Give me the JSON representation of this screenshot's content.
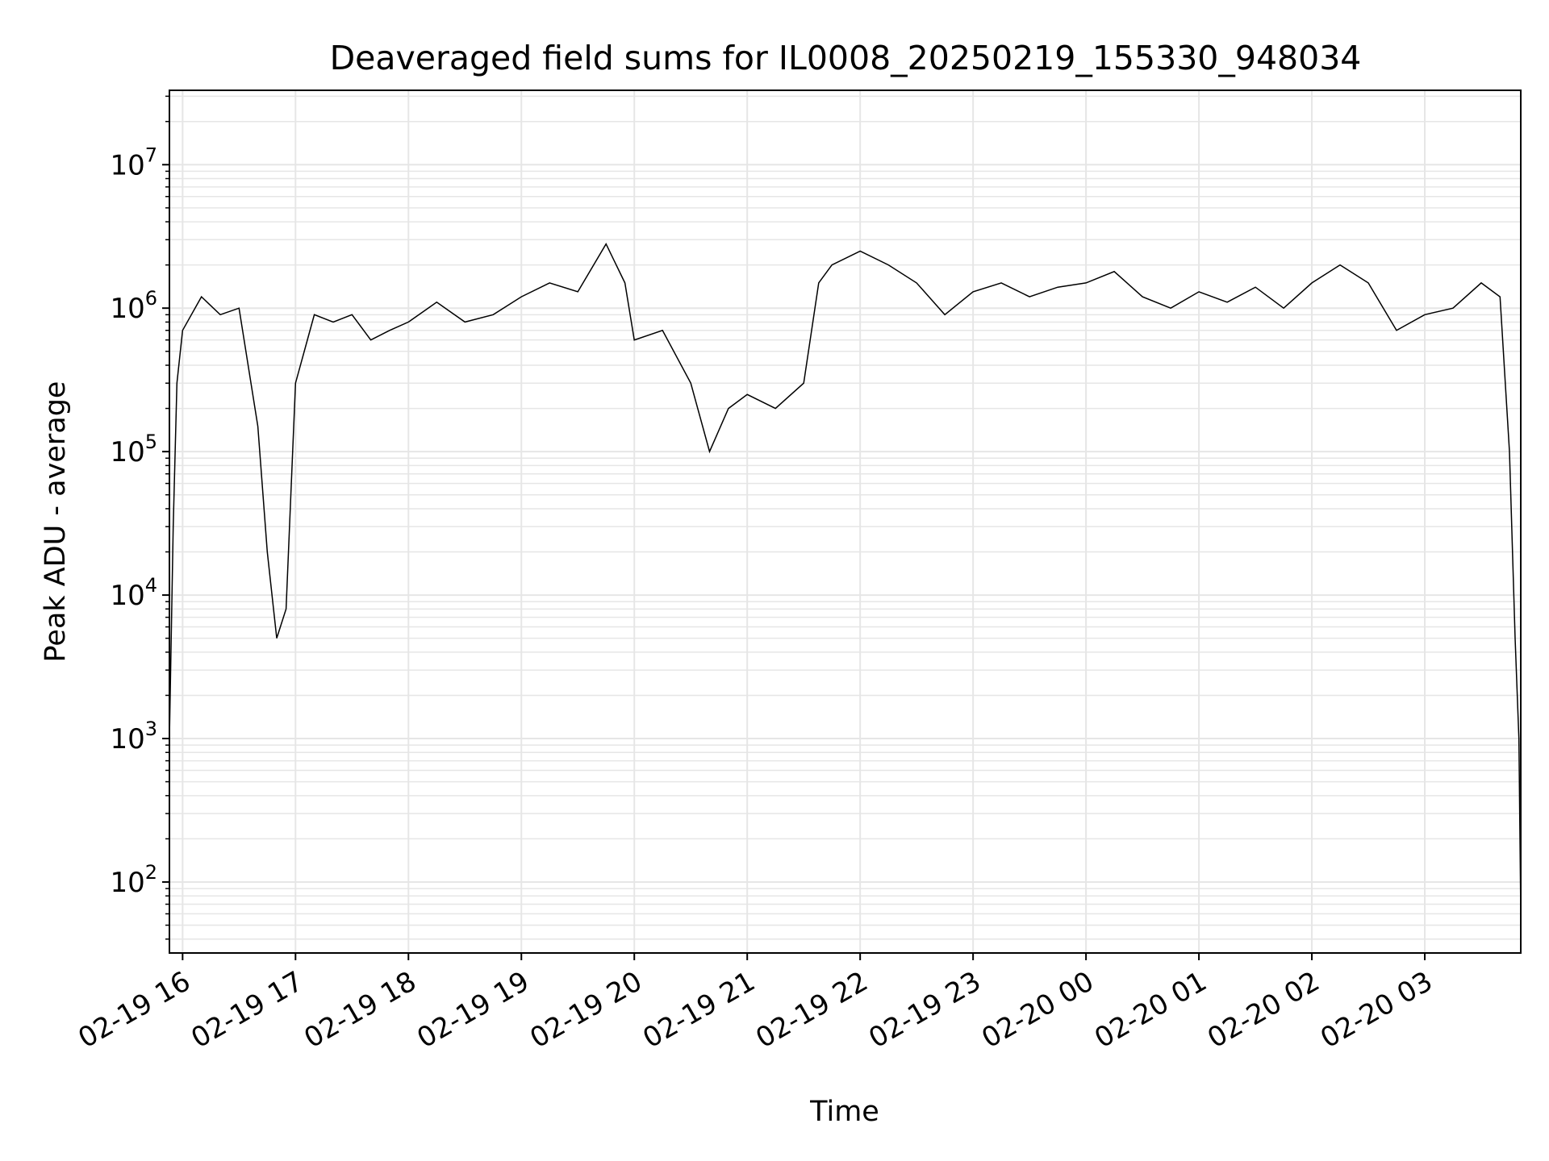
{
  "chart_data": {
    "type": "line",
    "title": "Deaveraged field sums for IL0008_20250219_155330_948034",
    "xlabel": "Time",
    "ylabel": "Peak ADU - average",
    "yscale": "log",
    "ylim": [
      32,
      33000000
    ],
    "xlim": [
      "2025-02-19 15:53",
      "2025-02-20 03:51"
    ],
    "grid": true,
    "line_color": "#000000",
    "grid_color": "#e6e6e6",
    "x_ticks": [
      {
        "value": "2025-02-19 16:00",
        "label": "02-19 16"
      },
      {
        "value": "2025-02-19 17:00",
        "label": "02-19 17"
      },
      {
        "value": "2025-02-19 18:00",
        "label": "02-19 18"
      },
      {
        "value": "2025-02-19 19:00",
        "label": "02-19 19"
      },
      {
        "value": "2025-02-19 20:00",
        "label": "02-19 20"
      },
      {
        "value": "2025-02-19 21:00",
        "label": "02-19 21"
      },
      {
        "value": "2025-02-19 22:00",
        "label": "02-19 22"
      },
      {
        "value": "2025-02-19 23:00",
        "label": "02-19 23"
      },
      {
        "value": "2025-02-20 00:00",
        "label": "02-20 00"
      },
      {
        "value": "2025-02-20 01:00",
        "label": "02-20 01"
      },
      {
        "value": "2025-02-20 02:00",
        "label": "02-20 02"
      },
      {
        "value": "2025-02-20 03:00",
        "label": "02-20 03"
      }
    ],
    "y_ticks": [
      {
        "value": 100,
        "base": "10",
        "exp": "2"
      },
      {
        "value": 1000,
        "base": "10",
        "exp": "3"
      },
      {
        "value": 10000,
        "base": "10",
        "exp": "4"
      },
      {
        "value": 100000,
        "base": "10",
        "exp": "5"
      },
      {
        "value": 1000000,
        "base": "10",
        "exp": "6"
      },
      {
        "value": 10000000,
        "base": "10",
        "exp": "7"
      }
    ],
    "series": [
      {
        "x": [
          "2025-02-19 15:53",
          "2025-02-19 15:55",
          "2025-02-19 15:57",
          "2025-02-19 16:00",
          "2025-02-19 16:10",
          "2025-02-19 16:20",
          "2025-02-19 16:30",
          "2025-02-19 16:40",
          "2025-02-19 16:45",
          "2025-02-19 16:50",
          "2025-02-19 16:55",
          "2025-02-19 17:00",
          "2025-02-19 17:10",
          "2025-02-19 17:20",
          "2025-02-19 17:30",
          "2025-02-19 17:40",
          "2025-02-19 17:50",
          "2025-02-19 18:00",
          "2025-02-19 18:15",
          "2025-02-19 18:30",
          "2025-02-19 18:45",
          "2025-02-19 19:00",
          "2025-02-19 19:15",
          "2025-02-19 19:30",
          "2025-02-19 19:45",
          "2025-02-19 19:55",
          "2025-02-19 20:00",
          "2025-02-19 20:15",
          "2025-02-19 20:30",
          "2025-02-19 20:40",
          "2025-02-19 20:50",
          "2025-02-19 21:00",
          "2025-02-19 21:15",
          "2025-02-19 21:30",
          "2025-02-19 21:38",
          "2025-02-19 21:45",
          "2025-02-19 22:00",
          "2025-02-19 22:15",
          "2025-02-19 22:30",
          "2025-02-19 22:45",
          "2025-02-19 23:00",
          "2025-02-19 23:15",
          "2025-02-19 23:30",
          "2025-02-19 23:45",
          "2025-02-20 00:00",
          "2025-02-20 00:15",
          "2025-02-20 00:30",
          "2025-02-20 00:45",
          "2025-02-20 01:00",
          "2025-02-20 01:15",
          "2025-02-20 01:30",
          "2025-02-20 01:45",
          "2025-02-20 02:00",
          "2025-02-20 02:15",
          "2025-02-20 02:30",
          "2025-02-20 02:45",
          "2025-02-20 03:00",
          "2025-02-20 03:15",
          "2025-02-20 03:30",
          "2025-02-20 03:40",
          "2025-02-20 03:45",
          "2025-02-20 03:48",
          "2025-02-20 03:50",
          "2025-02-20 03:51"
        ],
        "y": [
          1000,
          30000,
          300000,
          700000,
          1200000,
          900000,
          1000000,
          150000,
          20000,
          5000,
          8000,
          300000,
          900000,
          800000,
          900000,
          600000,
          700000,
          800000,
          1100000,
          800000,
          900000,
          1200000,
          1500000,
          1300000,
          2800000,
          1500000,
          600000,
          700000,
          300000,
          100000,
          200000,
          250000,
          200000,
          300000,
          1500000,
          2000000,
          2500000,
          2000000,
          1500000,
          900000,
          1300000,
          1500000,
          1200000,
          1400000,
          1500000,
          1800000,
          1200000,
          1000000,
          1300000,
          1100000,
          1400000,
          1000000,
          1500000,
          2000000,
          1500000,
          700000,
          900000,
          1000000,
          1500000,
          1200000,
          100000,
          5000,
          1000,
          60
        ]
      }
    ]
  }
}
